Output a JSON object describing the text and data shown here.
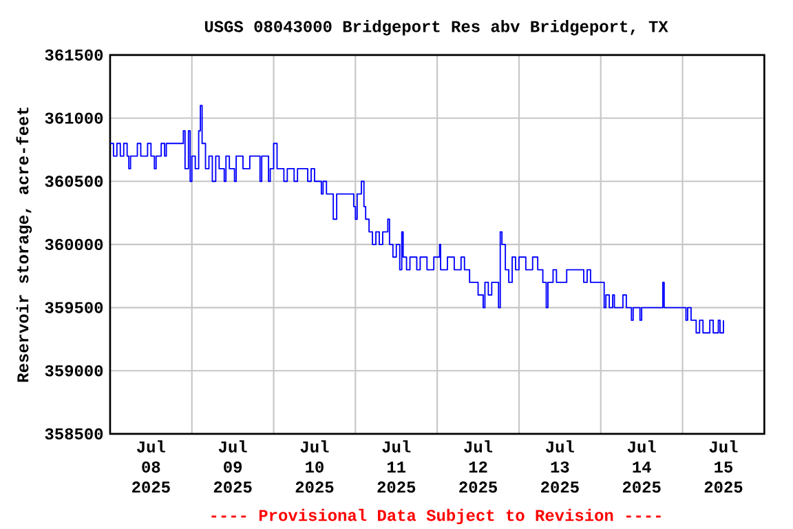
{
  "chart_data": {
    "type": "step",
    "title": "USGS 08043000 Bridgeport Res abv Bridgeport, TX",
    "ylabel": "Reservoir storage, acre-feet",
    "annotations": [
      "---- Provisional Data Subject to Revision ----"
    ],
    "x": [
      "2025-07-08T00:00",
      "2025-07-08T01:00",
      "2025-07-08T02:00",
      "2025-07-08T03:00",
      "2025-07-08T04:00",
      "2025-07-08T05:00",
      "2025-07-08T05:30",
      "2025-07-08T06:00",
      "2025-07-08T08:00",
      "2025-07-08T09:00",
      "2025-07-08T11:00",
      "2025-07-08T12:00",
      "2025-07-08T13:00",
      "2025-07-08T13:30",
      "2025-07-08T15:00",
      "2025-07-08T16:00",
      "2025-07-08T16:30",
      "2025-07-08T21:30",
      "2025-07-08T22:00",
      "2025-07-08T23:00",
      "2025-07-08T23:30",
      "2025-07-09T00:00",
      "2025-07-09T01:00",
      "2025-07-09T02:00",
      "2025-07-09T02:30",
      "2025-07-09T03:00",
      "2025-07-09T04:00",
      "2025-07-09T05:00",
      "2025-07-09T06:00",
      "2025-07-09T07:00",
      "2025-07-09T08:00",
      "2025-07-09T09:30",
      "2025-07-09T10:00",
      "2025-07-09T11:00",
      "2025-07-09T12:30",
      "2025-07-09T13:00",
      "2025-07-09T15:00",
      "2025-07-09T17:00",
      "2025-07-09T20:00",
      "2025-07-09T20:30",
      "2025-07-09T22:30",
      "2025-07-09T23:00",
      "2025-07-10T00:00",
      "2025-07-10T01:00",
      "2025-07-10T03:00",
      "2025-07-10T04:00",
      "2025-07-10T06:00",
      "2025-07-10T07:00",
      "2025-07-10T10:00",
      "2025-07-10T11:00",
      "2025-07-10T12:00",
      "2025-07-10T14:00",
      "2025-07-10T14:30",
      "2025-07-10T15:30",
      "2025-07-10T17:30",
      "2025-07-10T18:30",
      "2025-07-10T23:30",
      "2025-07-11T00:00",
      "2025-07-11T00:30",
      "2025-07-11T01:45",
      "2025-07-11T02:30",
      "2025-07-11T03:00",
      "2025-07-11T04:00",
      "2025-07-11T05:00",
      "2025-07-11T06:00",
      "2025-07-11T07:00",
      "2025-07-11T08:00",
      "2025-07-11T09:30",
      "2025-07-11T10:00",
      "2025-07-11T11:00",
      "2025-07-11T12:00",
      "2025-07-11T13:00",
      "2025-07-11T13:36",
      "2025-07-11T14:00",
      "2025-07-11T15:00",
      "2025-07-11T16:00",
      "2025-07-11T18:00",
      "2025-07-11T19:00",
      "2025-07-11T21:00",
      "2025-07-11T23:00",
      "2025-07-12T00:42",
      "2025-07-12T01:00",
      "2025-07-12T03:00",
      "2025-07-12T05:00",
      "2025-07-12T07:00",
      "2025-07-12T08:00",
      "2025-07-12T09:30",
      "2025-07-12T12:00",
      "2025-07-12T13:30",
      "2025-07-12T14:00",
      "2025-07-12T15:00",
      "2025-07-12T16:00",
      "2025-07-12T18:00",
      "2025-07-12T18:30",
      "2025-07-12T19:00",
      "2025-07-12T20:00",
      "2025-07-12T21:00",
      "2025-07-12T22:00",
      "2025-07-12T23:00",
      "2025-07-13T00:00",
      "2025-07-13T02:00",
      "2025-07-13T04:00",
      "2025-07-13T05:30",
      "2025-07-13T07:00",
      "2025-07-13T08:00",
      "2025-07-13T08:30",
      "2025-07-13T10:00",
      "2025-07-13T11:00",
      "2025-07-13T14:00",
      "2025-07-13T15:30",
      "2025-07-13T19:00",
      "2025-07-13T20:00",
      "2025-07-13T21:00",
      "2025-07-14T01:00",
      "2025-07-14T01:30",
      "2025-07-14T02:30",
      "2025-07-14T03:30",
      "2025-07-14T04:00",
      "2025-07-14T06:30",
      "2025-07-14T07:30",
      "2025-07-14T09:00",
      "2025-07-14T09:30",
      "2025-07-14T11:30",
      "2025-07-14T12:00",
      "2025-07-14T18:12",
      "2025-07-14T18:36",
      "2025-07-15T01:00",
      "2025-07-15T01:30",
      "2025-07-15T02:30",
      "2025-07-15T04:00",
      "2025-07-15T05:00",
      "2025-07-15T06:00",
      "2025-07-15T08:00",
      "2025-07-15T09:00",
      "2025-07-15T10:30",
      "2025-07-15T11:00",
      "2025-07-15T12:00"
    ],
    "values": [
      360800,
      360700,
      360800,
      360700,
      360800,
      360700,
      360600,
      360700,
      360800,
      360700,
      360800,
      360700,
      360600,
      360700,
      360800,
      360700,
      360800,
      360900,
      360600,
      360900,
      360500,
      360700,
      360600,
      360900,
      361100,
      360800,
      360600,
      360700,
      360500,
      360700,
      360600,
      360500,
      360700,
      360600,
      360500,
      360700,
      360600,
      360700,
      360500,
      360700,
      360500,
      360600,
      360800,
      360600,
      360500,
      360600,
      360500,
      360600,
      360500,
      360600,
      360500,
      360400,
      360500,
      360400,
      360200,
      360400,
      360300,
      360200,
      360400,
      360500,
      360300,
      360200,
      360100,
      360000,
      360100,
      360000,
      360100,
      360200,
      360000,
      359900,
      360000,
      359800,
      360100,
      359900,
      359800,
      359900,
      359800,
      359900,
      359800,
      359900,
      360000,
      359800,
      359900,
      359800,
      359900,
      359800,
      359700,
      359600,
      359500,
      359700,
      359600,
      359700,
      359500,
      360100,
      360000,
      359800,
      359700,
      359900,
      359800,
      359900,
      359800,
      359900,
      359800,
      359700,
      359500,
      359700,
      359800,
      359700,
      359800,
      359800,
      359700,
      359800,
      359700,
      359500,
      359600,
      359500,
      359600,
      359500,
      359600,
      359500,
      359400,
      359500,
      359400,
      359500,
      359700,
      359500,
      359400,
      359500,
      359400,
      359300,
      359400,
      359300,
      359400,
      359300,
      359400,
      359300,
      359400
    ],
    "color": "#0000ff",
    "xlim": [
      "2025-07-08T00:00",
      "2025-07-16T00:00"
    ],
    "xticks": [
      {
        "value": "2025-07-09T00:00",
        "label": null
      },
      {
        "value": "2025-07-10T00:00",
        "label": null
      },
      {
        "value": "2025-07-11T00:00",
        "label": null
      },
      {
        "value": "2025-07-12T00:00",
        "label": null
      },
      {
        "value": "2025-07-13T00:00",
        "label": null
      },
      {
        "value": "2025-07-14T00:00",
        "label": null
      },
      {
        "value": "2025-07-15T00:00",
        "label": null
      },
      {
        "value": "2025-07-08T12:00",
        "label": "Jul 08 2025"
      },
      {
        "value": "2025-07-09T12:00",
        "label": "Jul 09 2025"
      },
      {
        "value": "2025-07-10T12:00",
        "label": "Jul 10 2025"
      },
      {
        "value": "2025-07-11T12:00",
        "label": "Jul 11 2025"
      },
      {
        "value": "2025-07-12T12:00",
        "label": "Jul 12 2025"
      },
      {
        "value": "2025-07-13T12:00",
        "label": "Jul 13 2025"
      },
      {
        "value": "2025-07-14T12:00",
        "label": "Jul 14 2025"
      },
      {
        "value": "2025-07-15T12:00",
        "label": "Jul 15 2025"
      }
    ],
    "ylim": [
      358500,
      361500
    ],
    "yticks": [
      358500,
      359000,
      359500,
      360000,
      360500,
      361000,
      361500
    ],
    "grid": true,
    "marker": "none",
    "line_style": "solid"
  }
}
